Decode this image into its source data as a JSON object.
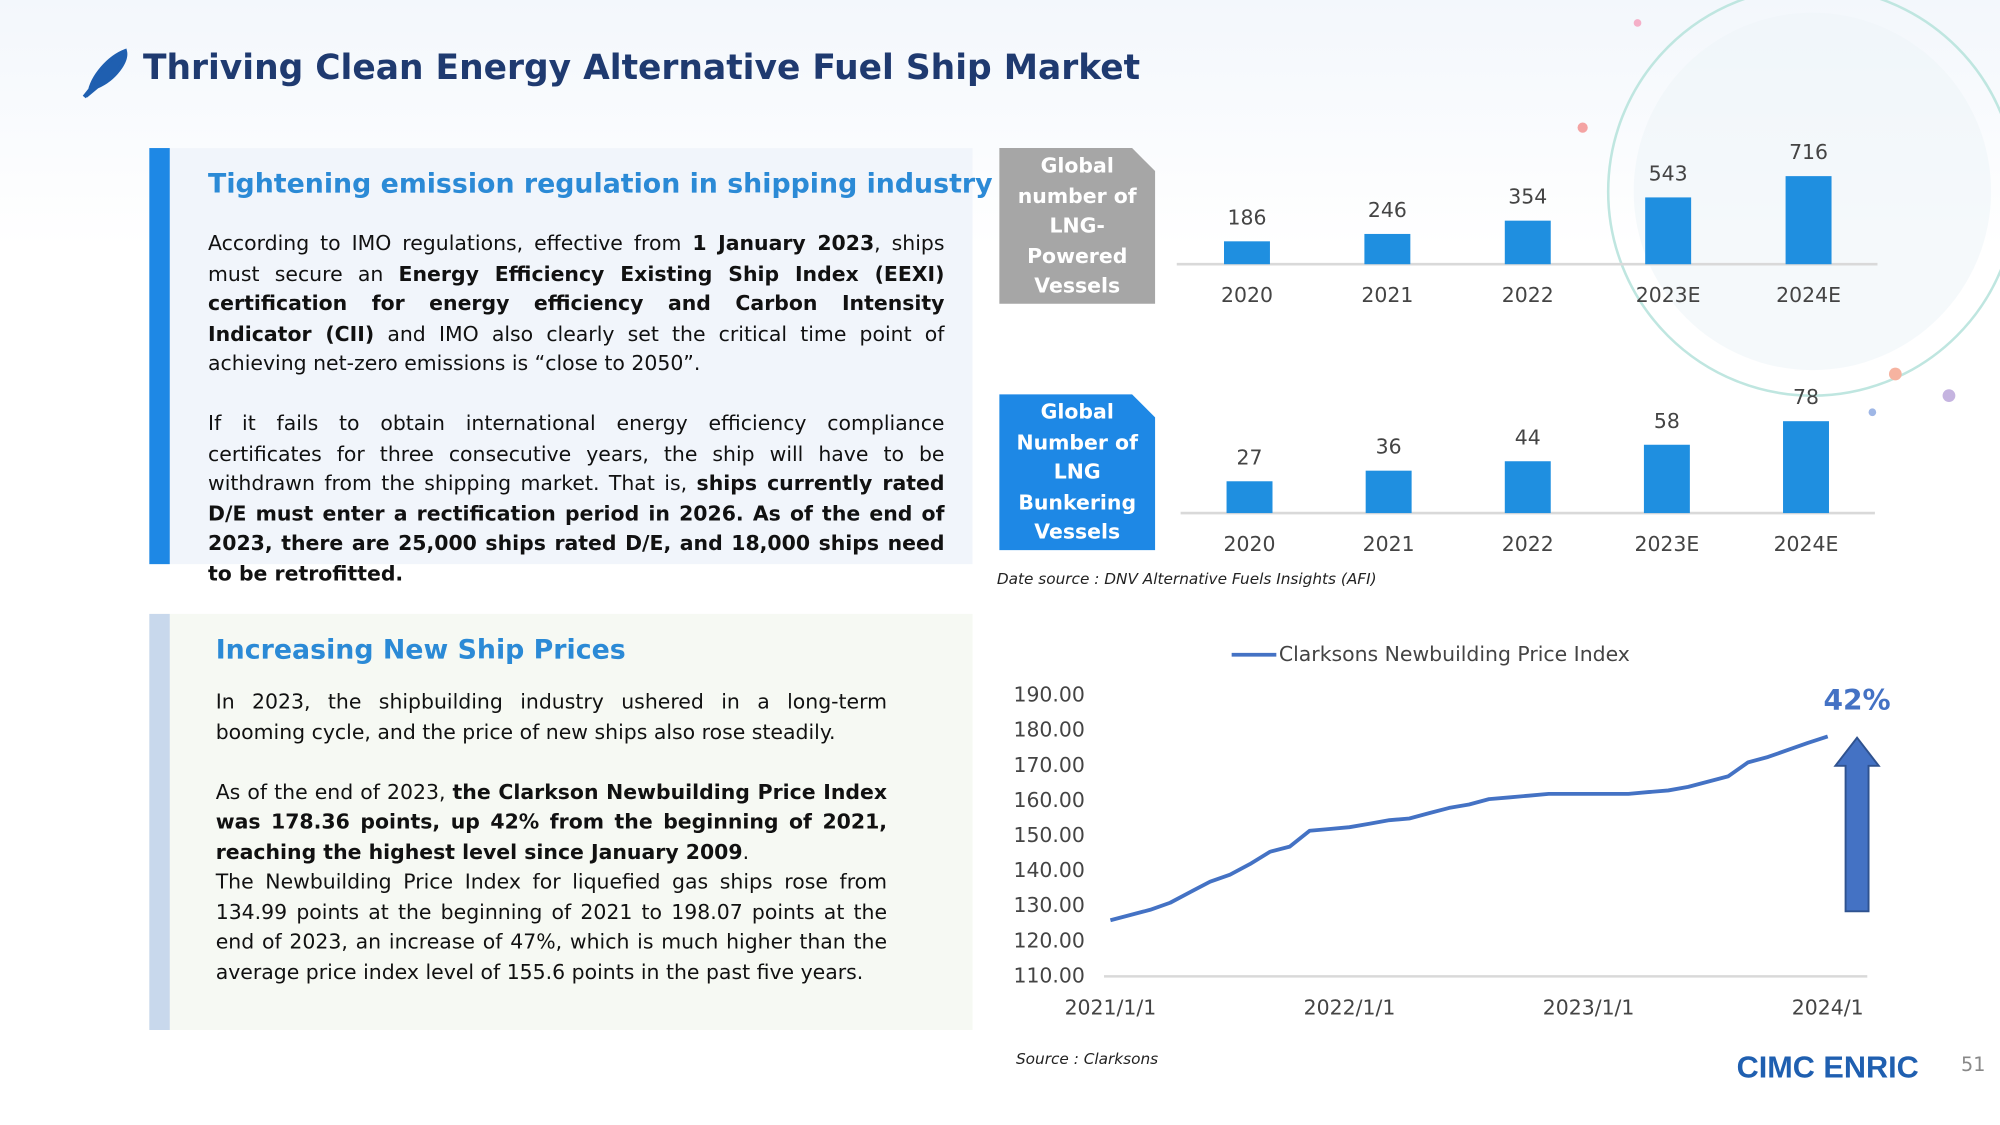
{
  "header": {
    "title": "Thriving Clean Energy Alternative Fuel Ship Market"
  },
  "left_panel": {
    "heading": "Tightening emission regulation in shipping industry",
    "paragraphs": [
      [
        "According to IMO regulations, effective from ",
        "1 January 2023",
        ", ships must secure an ",
        "Energy Efficiency Existing Ship Index (EEXI) certification for energy efficiency and Carbon Intensity Indicator (CII)",
        " and IMO also clearly set the critical time point of achieving net-zero emissions is “close to 2050”."
      ],
      [
        "If it fails to obtain international energy efficiency compliance certificates for three consecutive years, the ship will have to be withdrawn from the shipping market. That is, ",
        "ships currently rated D/E must enter a rectification period in 2026. As of the end of 2023, there are 25,000 ships rated D/E, and 18,000 ships need to be retrofitted."
      ]
    ]
  },
  "right_panel": {
    "heading": "Increasing New Ship Prices",
    "paragraphs": [
      [
        "In 2023, the shipbuilding industry ushered in a long-term booming cycle, and the price of new ships also rose steadily."
      ],
      [
        "As of the end of 2023, ",
        "the Clarkson Newbuilding Price Index was 178.36 points, up 42% from the beginning of 2021, reaching the highest level since January 2009",
        "."
      ],
      [
        "The Newbuilding Price Index for liquefied gas ships rose from 134.99 points at the beginning of 2021 to 198.07 points at the end of 2023, an increase of 47%, which is much higher than the average price index level of 155.6 points in the past five years."
      ]
    ]
  },
  "chart_data": [
    {
      "type": "bar",
      "title": "Global number of LNG-Powered Vessels",
      "categories": [
        "2020",
        "2021",
        "2022",
        "2023E",
        "2024E"
      ],
      "values": [
        186,
        246,
        354,
        543,
        716
      ],
      "color": "#1f8fe0",
      "label_color": "#a6a6a6"
    },
    {
      "type": "bar",
      "title": "Global Number of LNG Bunkering Vessels",
      "categories": [
        "2020",
        "2021",
        "2022",
        "2023E",
        "2024E"
      ],
      "values": [
        27,
        36,
        44,
        58,
        78
      ],
      "color": "#1f8fe0",
      "label_color": "#1e88e5"
    },
    {
      "type": "line",
      "x": [
        "2021-01",
        "2021-02",
        "2021-03",
        "2021-04",
        "2021-05",
        "2021-06",
        "2021-07",
        "2021-08",
        "2021-09",
        "2021-10",
        "2021-11",
        "2021-12",
        "2022-01",
        "2022-02",
        "2022-03",
        "2022-04",
        "2022-05",
        "2022-06",
        "2022-07",
        "2022-08",
        "2022-09",
        "2022-10",
        "2022-11",
        "2022-12",
        "2023-01",
        "2023-02",
        "2023-03",
        "2023-04",
        "2023-05",
        "2023-06",
        "2023-07",
        "2023-08",
        "2023-09",
        "2023-10",
        "2023-11",
        "2023-12",
        "2024-01"
      ],
      "series": [
        {
          "name": "Clarksons Newbuilding Price Index",
          "color": "#4472c4",
          "values": [
            126,
            127.5,
            129,
            131,
            134,
            137,
            139,
            142,
            145.5,
            147,
            151.5,
            152,
            152.5,
            153.5,
            154.5,
            155,
            156.5,
            158,
            159,
            160.5,
            161,
            161.5,
            162,
            162,
            162,
            162,
            162,
            162.5,
            163,
            164,
            165.5,
            167,
            171,
            172.5,
            174.5,
            176.5,
            178.36
          ]
        }
      ],
      "xlim": [
        "2021-01",
        "2024-01"
      ],
      "xticks": [
        {
          "value": "2021-01",
          "label": "2021/1/1"
        },
        {
          "value": "2022-01",
          "label": "2022/1/1"
        },
        {
          "value": "2023-01",
          "label": "2023/1/1"
        },
        {
          "value": "2024-01",
          "label": "2024/1"
        }
      ],
      "ylim": [
        110,
        190
      ],
      "yticks": [
        {
          "value": 110,
          "label": "110.00"
        },
        {
          "value": 120,
          "label": "120.00"
        },
        {
          "value": 130,
          "label": "130.00"
        },
        {
          "value": 140,
          "label": "140.00"
        },
        {
          "value": 150,
          "label": "150.00"
        },
        {
          "value": 160,
          "label": "160.00"
        },
        {
          "value": 170,
          "label": "170.00"
        },
        {
          "value": 180,
          "label": "180.00"
        },
        {
          "value": 190,
          "label": "190.00"
        }
      ],
      "annotation": "42%",
      "legend": "top"
    }
  ],
  "notes": {
    "data_source": "Date source :  DNV Alternative Fuels Insights (AFI)",
    "source": "Source :  Clarksons"
  },
  "footer": {
    "logo": "CIMC ENRIC",
    "page": "51"
  }
}
